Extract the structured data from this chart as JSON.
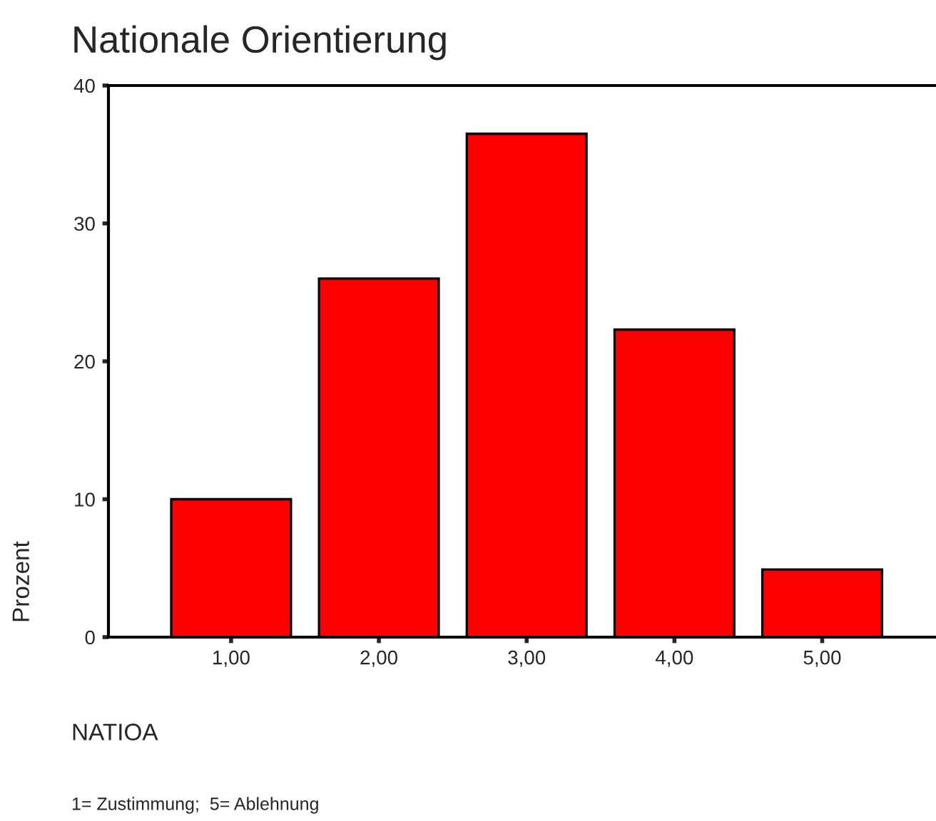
{
  "chart_data": {
    "type": "bar",
    "title": "Nationale Orientierung",
    "xlabel": "NATIOA",
    "ylabel": "Prozent",
    "categories": [
      "1,00",
      "2,00",
      "3,00",
      "4,00",
      "5,00"
    ],
    "values": [
      10.0,
      26.0,
      36.5,
      22.3,
      4.9
    ],
    "color": "#ff0000",
    "ylim": [
      0,
      40
    ],
    "yticks": [
      0,
      10,
      20,
      30,
      40
    ],
    "grid": false,
    "legend": false,
    "annotations": [
      "1= Zustimmung;  5= Ablehnung"
    ]
  }
}
